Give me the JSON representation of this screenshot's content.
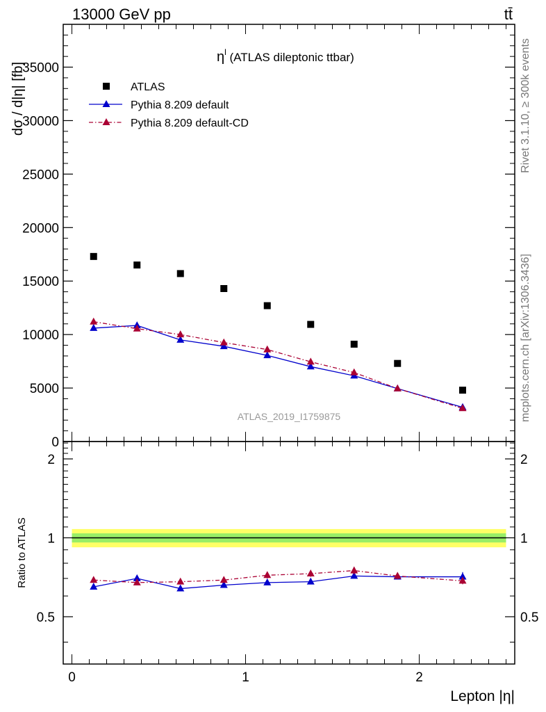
{
  "header": {
    "energy_label": "13000 GeV pp",
    "process_label": "tt̄"
  },
  "side_labels": {
    "rivet": "Rivet 3.1.10, ≥ 300k events",
    "mcplots": "mcplots.cern.ch [arXiv:1306.3436]"
  },
  "watermark": "ATLAS_2019_I1759875",
  "chart_data": [
    {
      "type": "scatter",
      "panel": "main",
      "title": "η",
      "title_sup": "l",
      "title_suffix": " (ATLAS dileptonic ttbar)",
      "ylabel": "dσ / d|η| [fb]",
      "xlabel": "",
      "xlim": [
        -0.05,
        2.55
      ],
      "ylim": [
        0,
        39000
      ],
      "yticks": [
        0,
        5000,
        10000,
        15000,
        20000,
        25000,
        30000,
        35000
      ],
      "ytick_labels": [
        "0",
        "5000",
        "10000",
        "15000",
        "20000",
        "25000",
        "30000",
        "35000"
      ],
      "legend_position": "top-left",
      "x": [
        0.125,
        0.375,
        0.625,
        0.875,
        1.125,
        1.375,
        1.625,
        1.875,
        2.25
      ],
      "series": [
        {
          "name": "ATLAS",
          "color": "#000000",
          "marker": "square",
          "values": [
            17300,
            16500,
            15700,
            14300,
            12700,
            10950,
            9100,
            7300,
            4800
          ],
          "errors": [
            150,
            150,
            150,
            150,
            150,
            150,
            120,
            120,
            100
          ]
        },
        {
          "name": "Pythia 8.209 default",
          "color": "#0000cc",
          "marker": "triangle",
          "line": "solid",
          "values": [
            10600,
            10850,
            9500,
            8900,
            8050,
            7000,
            6150,
            4950,
            3200
          ],
          "errors": [
            150,
            200,
            150,
            150,
            120,
            120,
            120,
            100,
            100
          ]
        },
        {
          "name": "Pythia 8.209 default-CD",
          "color": "#aa0033",
          "marker": "triangle",
          "line": "dashdot",
          "values": [
            11200,
            10550,
            10000,
            9250,
            8600,
            7450,
            6450,
            4950,
            3100
          ],
          "errors": [
            200,
            150,
            150,
            150,
            120,
            120,
            120,
            100,
            100
          ]
        }
      ]
    },
    {
      "type": "scatter",
      "panel": "ratio",
      "ylabel": "Ratio to ATLAS",
      "xlabel": "Lepton |η|",
      "xlim": [
        -0.05,
        2.55
      ],
      "ylim": [
        0.33,
        2.33
      ],
      "yticks": [
        0.5,
        1,
        2
      ],
      "ytick_labels": [
        "0.5",
        "1",
        "2"
      ],
      "xticks": [
        0,
        1,
        2
      ],
      "xtick_labels": [
        "0",
        "1",
        "2"
      ],
      "band": {
        "center": 1,
        "inner": 0.04,
        "outer": 0.08,
        "inner_color": "#99ee66",
        "outer_color": "#ffff66"
      },
      "x": [
        0.125,
        0.375,
        0.625,
        0.875,
        1.125,
        1.375,
        1.625,
        1.875,
        2.25
      ],
      "series": [
        {
          "name": "Pythia 8.209 default",
          "color": "#0000cc",
          "marker": "triangle",
          "line": "solid",
          "values": [
            0.65,
            0.7,
            0.64,
            0.66,
            0.675,
            0.68,
            0.715,
            0.71,
            0.71
          ],
          "errors": [
            0.012,
            0.02,
            0.012,
            0.012,
            0.012,
            0.015,
            0.015,
            0.015,
            0.03
          ]
        },
        {
          "name": "Pythia 8.209 default-CD",
          "color": "#aa0033",
          "marker": "triangle",
          "line": "dashdot",
          "values": [
            0.69,
            0.675,
            0.68,
            0.69,
            0.72,
            0.73,
            0.75,
            0.715,
            0.685
          ],
          "errors": [
            0.015,
            0.012,
            0.015,
            0.015,
            0.02,
            0.02,
            0.025,
            0.02,
            0.02
          ]
        }
      ]
    }
  ]
}
